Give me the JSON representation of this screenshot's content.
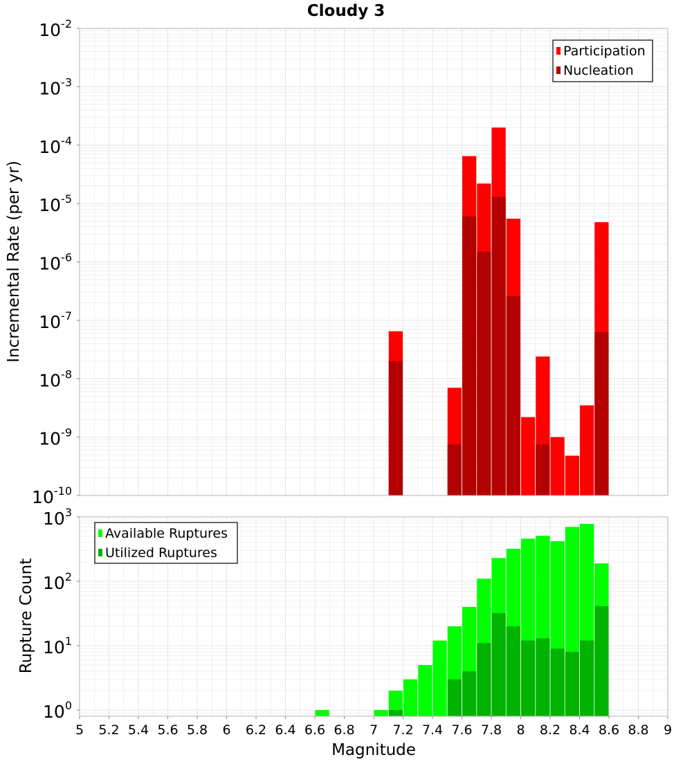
{
  "title": "Cloudy 3",
  "xlabel": "Magnitude",
  "x_ticks": [
    "5",
    "5.2",
    "5.4",
    "5.6",
    "5.8",
    "6",
    "6.2",
    "6.4",
    "6.6",
    "6.8",
    "7",
    "7.2",
    "7.4",
    "7.6",
    "7.8",
    "8",
    "8.2",
    "8.4",
    "8.6",
    "8.8",
    "9"
  ],
  "colors": {
    "participation": "#ff0000",
    "nucleation": "#b30000",
    "available": "#00ff00",
    "utilized": "#00b300",
    "grid": "#e4e4e4",
    "frame": "#b0b0b0"
  },
  "chart_data": [
    {
      "type": "bar",
      "title": "Cloudy 3",
      "ylabel": "Incremental Rate (per yr)",
      "xlabel": "Magnitude",
      "y_scale": "log",
      "xlim": [
        5,
        9
      ],
      "ylim": [
        1e-10,
        0.01
      ],
      "y_tick_exponents": [
        "-2",
        "-3",
        "-4",
        "-5",
        "-6",
        "-7",
        "-8",
        "-9",
        "-10"
      ],
      "bar_width": 0.095,
      "legend": {
        "placement": "top-right",
        "entries": [
          "Participation",
          "Nucleation"
        ]
      },
      "grid": true,
      "x": [
        7.15,
        7.55,
        7.65,
        7.75,
        7.85,
        7.95,
        8.05,
        8.15,
        8.25,
        8.35,
        8.45,
        8.55
      ],
      "series": [
        {
          "name": "Participation",
          "values": [
            6.5e-08,
            7e-09,
            6.5e-05,
            2.2e-05,
            0.0002,
            5.5e-06,
            2.2e-09,
            2.4e-08,
            1e-09,
            4.8e-10,
            3.5e-09,
            4.8e-06
          ]
        },
        {
          "name": "Nucleation",
          "values": [
            2e-08,
            7.5e-10,
            6e-06,
            1.5e-06,
            1.3e-05,
            2.6e-07,
            null,
            7.5e-10,
            null,
            null,
            null,
            6.3e-08
          ]
        }
      ]
    },
    {
      "type": "bar",
      "ylabel": "Rupture Count",
      "xlabel": "Magnitude",
      "y_scale": "log",
      "xlim": [
        5,
        9
      ],
      "ylim": [
        0.8,
        1000
      ],
      "y_tick_exponents": [
        "3",
        "2",
        "1",
        "0"
      ],
      "bar_width": 0.095,
      "legend": {
        "placement": "top-left",
        "entries": [
          "Available Ruptures",
          "Utilized Ruptures"
        ]
      },
      "grid": true,
      "x": [
        6.65,
        7.05,
        7.15,
        7.25,
        7.35,
        7.45,
        7.55,
        7.65,
        7.75,
        7.85,
        7.95,
        8.05,
        8.15,
        8.25,
        8.35,
        8.45,
        8.55
      ],
      "series": [
        {
          "name": "Available Ruptures",
          "values": [
            1,
            1,
            2,
            3,
            5,
            12,
            20,
            40,
            110,
            230,
            320,
            460,
            510,
            420,
            700,
            780,
            190
          ]
        },
        {
          "name": "Utilized Ruptures",
          "values": [
            null,
            null,
            1,
            null,
            null,
            null,
            3,
            4,
            11,
            32,
            20,
            12,
            13,
            9,
            8,
            12,
            41
          ]
        }
      ]
    }
  ]
}
